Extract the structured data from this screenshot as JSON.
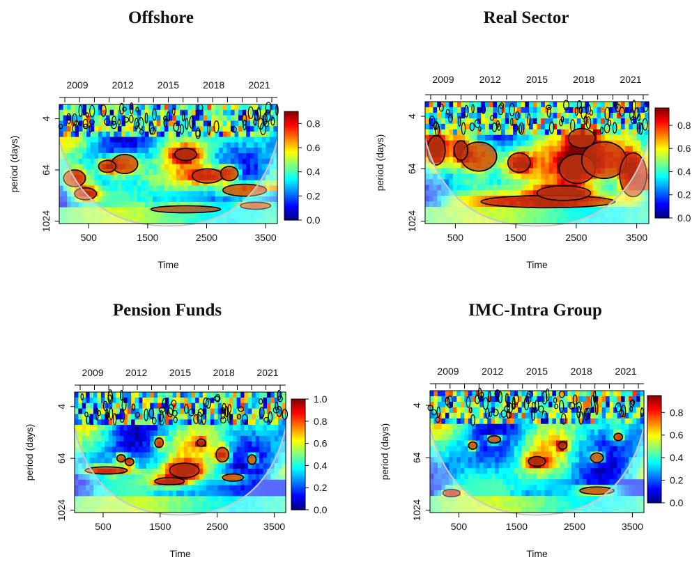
{
  "chart_data": [
    {
      "type": "heatmap",
      "title": "Offshore",
      "xlabel": "Time",
      "ylabel": "period (days)",
      "x_ticks": [
        500,
        1500,
        2500,
        3500
      ],
      "top_axis_ticks": [
        "2009",
        "2012",
        "2015",
        "2018",
        "2021"
      ],
      "y_ticks": [
        "4",
        "64",
        "1024"
      ],
      "colorbar_ticks": [
        "0.0",
        "0.2",
        "0.4",
        "0.6",
        "0.8"
      ],
      "colorbar_range": [
        0,
        0.9
      ],
      "colormap": [
        "#00007f",
        "#0000ff",
        "#0080ff",
        "#00ffff",
        "#80ff80",
        "#ffff00",
        "#ff8000",
        "#ff0000",
        "#7f0000"
      ],
      "cone_color": "#c8c8c8",
      "significance_color": "#000000"
    },
    {
      "type": "heatmap",
      "title": "Real Sector",
      "xlabel": "Time",
      "ylabel": "period (days)",
      "x_ticks": [
        500,
        1500,
        2500,
        3500
      ],
      "top_axis_ticks": [
        "2009",
        "2012",
        "2015",
        "2018",
        "2021"
      ],
      "y_ticks": [
        "4",
        "64",
        "1024"
      ],
      "colorbar_ticks": [
        "0.0",
        "0.2",
        "0.4",
        "0.6",
        "0.8"
      ],
      "colorbar_range": [
        0,
        0.95
      ],
      "colormap": [
        "#00007f",
        "#0000ff",
        "#0080ff",
        "#00ffff",
        "#80ff80",
        "#ffff00",
        "#ff8000",
        "#ff0000",
        "#7f0000"
      ],
      "cone_color": "#c8c8c8",
      "significance_color": "#000000"
    },
    {
      "type": "heatmap",
      "title": "Pension Funds",
      "xlabel": "Time",
      "ylabel": "period (days)",
      "x_ticks": [
        500,
        1500,
        2500,
        3500
      ],
      "top_axis_ticks": [
        "2009",
        "2012",
        "2015",
        "2018",
        "2021"
      ],
      "y_ticks": [
        "4",
        "64",
        "1024"
      ],
      "colorbar_ticks": [
        "0.0",
        "0.2",
        "0.4",
        "0.6",
        "0.8",
        "1.0"
      ],
      "colorbar_range": [
        0,
        1.0
      ],
      "colormap": [
        "#00007f",
        "#0000ff",
        "#0080ff",
        "#00ffff",
        "#80ff80",
        "#ffff00",
        "#ff8000",
        "#ff0000",
        "#7f0000"
      ],
      "cone_color": "#c8c8c8",
      "significance_color": "#000000"
    },
    {
      "type": "heatmap",
      "title": "IMC-Intra Group",
      "xlabel": "Time",
      "ylabel": "period (days)",
      "x_ticks": [
        500,
        1500,
        2500,
        3500
      ],
      "top_axis_ticks": [
        "2009",
        "2012",
        "2015",
        "2018",
        "2021"
      ],
      "y_ticks": [
        "4",
        "64",
        "1024"
      ],
      "colorbar_ticks": [
        "0.0",
        "0.2",
        "0.4",
        "0.6",
        "0.8"
      ],
      "colorbar_range": [
        0,
        0.95
      ],
      "colormap": [
        "#00007f",
        "#0000ff",
        "#0080ff",
        "#00ffff",
        "#80ff80",
        "#ffff00",
        "#ff8000",
        "#ff0000",
        "#7f0000"
      ],
      "cone_color": "#c8c8c8",
      "significance_color": "#000000"
    }
  ]
}
